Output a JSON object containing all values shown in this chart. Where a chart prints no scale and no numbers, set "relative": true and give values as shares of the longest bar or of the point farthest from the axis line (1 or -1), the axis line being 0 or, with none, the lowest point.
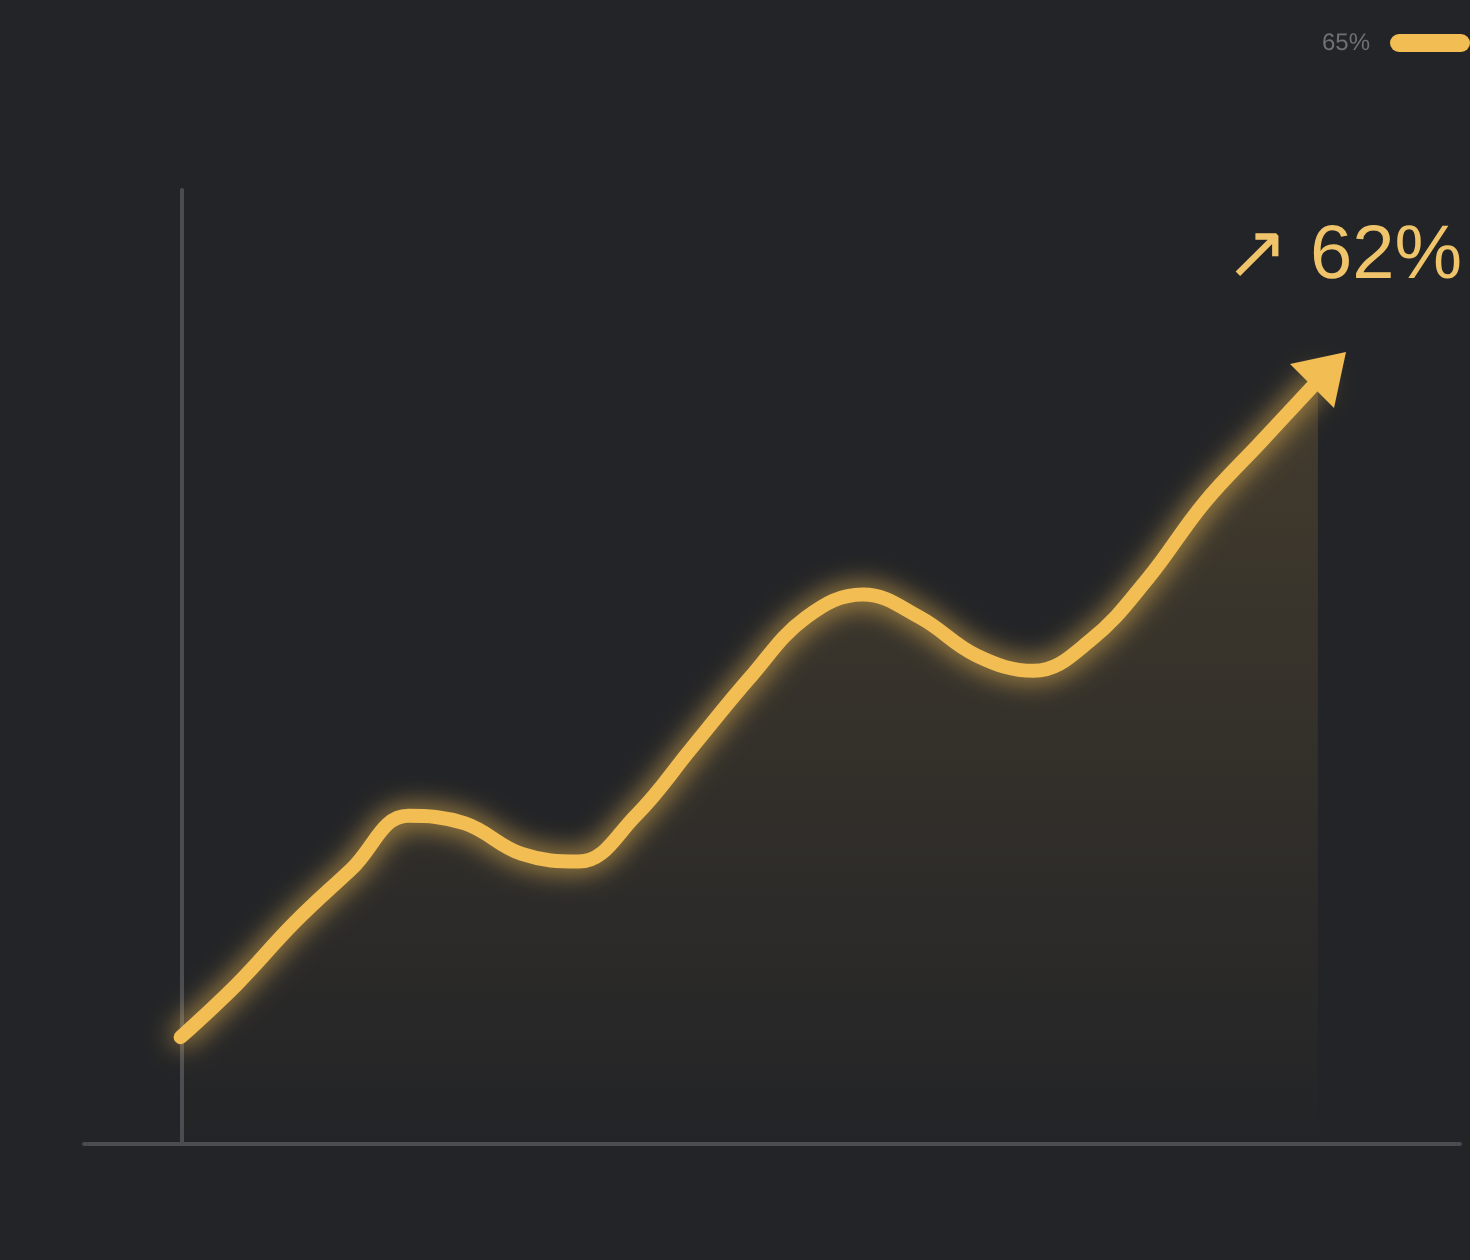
{
  "chart_data": {
    "type": "area",
    "relative": true,
    "categories": [
      null,
      null,
      null,
      null,
      null,
      null,
      null,
      null,
      null,
      null,
      null,
      null,
      null,
      null,
      null,
      null,
      null,
      null,
      null,
      null,
      null
    ],
    "series": [
      {
        "color": "#f2bd52",
        "values": [
          0.14,
          0.21,
          0.29,
          0.36,
          0.43,
          0.42,
          0.38,
          0.37,
          0.43,
          0.52,
          0.61,
          0.69,
          0.72,
          0.69,
          0.64,
          0.62,
          0.66,
          0.74,
          0.84,
          0.92,
          1
        ]
      }
    ],
    "annotations": [
      "↗ 62%",
      "65%"
    ],
    "grid": false,
    "line_style": "solid"
  }
}
